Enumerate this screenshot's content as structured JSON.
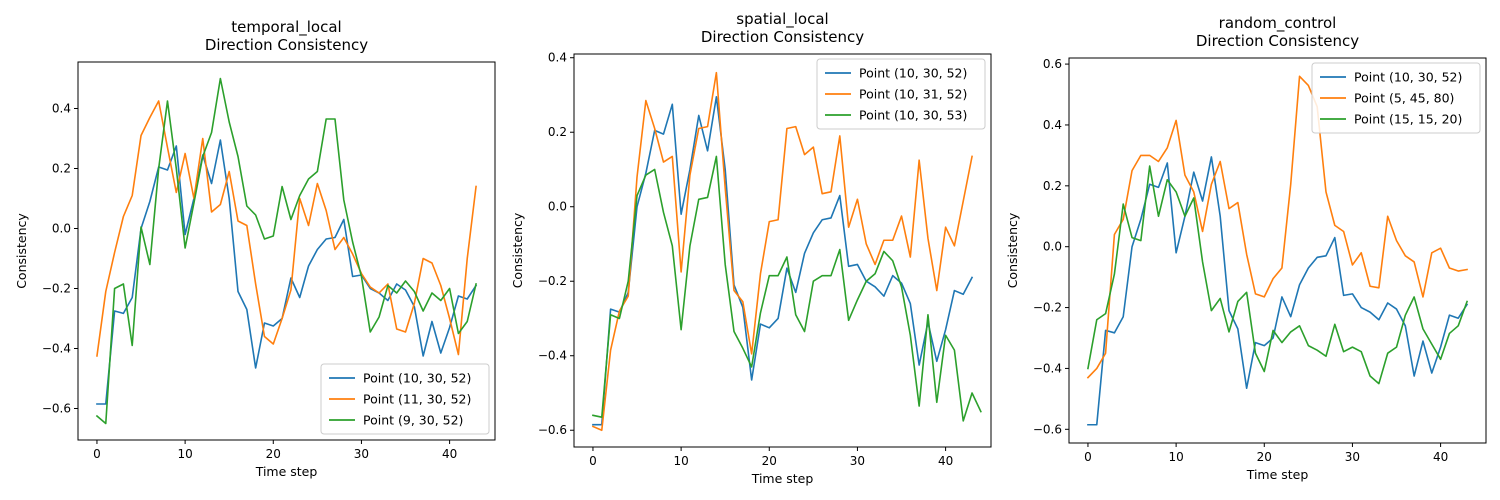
{
  "colors": {
    "c0": "#1f77b4",
    "c1": "#ff7f0e",
    "c2": "#2ca02c"
  },
  "chart_data": [
    {
      "type": "line",
      "title": "temporal_local",
      "subtitle": "Direction Consistency",
      "xlabel": "Time step",
      "ylabel": "Consistency",
      "xlim": [
        -2.15,
        45.15
      ],
      "ylim": [
        -0.705,
        0.555
      ],
      "xticks": [
        0,
        10,
        20,
        30,
        40
      ],
      "yticks": [
        -0.6,
        -0.4,
        -0.2,
        0.0,
        0.2,
        0.4
      ],
      "ytick_labels": [
        "−0.6",
        "−0.4",
        "−0.2",
        "0.0",
        "0.2",
        "0.4"
      ],
      "legend_position": "lower-right",
      "grid": false,
      "series": [
        {
          "name": "Point (10, 30, 52)",
          "values": [
            -0.585,
            -0.585,
            -0.275,
            -0.283,
            -0.23,
            0.0,
            0.09,
            0.205,
            0.195,
            0.275,
            -0.02,
            0.1,
            0.245,
            0.15,
            0.295,
            0.1,
            -0.21,
            -0.27,
            -0.465,
            -0.315,
            -0.325,
            -0.3,
            -0.165,
            -0.23,
            -0.125,
            -0.07,
            -0.035,
            -0.03,
            0.03,
            -0.16,
            -0.155,
            -0.2,
            -0.215,
            -0.24,
            -0.185,
            -0.205,
            -0.26,
            -0.425,
            -0.31,
            -0.415,
            -0.33,
            -0.225,
            -0.235,
            -0.19
          ]
        },
        {
          "name": "Point (11, 30, 52)",
          "values": [
            -0.425,
            -0.21,
            -0.08,
            0.04,
            0.11,
            0.31,
            0.37,
            0.425,
            0.27,
            0.12,
            0.25,
            0.1,
            0.3,
            0.055,
            0.08,
            0.19,
            0.025,
            0.01,
            -0.185,
            -0.36,
            -0.385,
            -0.3,
            -0.205,
            0.1,
            0.01,
            0.15,
            0.06,
            -0.07,
            -0.03,
            -0.085,
            -0.15,
            -0.195,
            -0.215,
            -0.185,
            -0.335,
            -0.345,
            -0.25,
            -0.1,
            -0.115,
            -0.19,
            -0.3,
            -0.42,
            -0.1,
            0.14
          ]
        },
        {
          "name": "Point (9, 30, 52)",
          "values": [
            -0.625,
            -0.65,
            -0.2,
            -0.185,
            -0.39,
            0.005,
            -0.12,
            0.2,
            0.425,
            0.2,
            -0.065,
            0.085,
            0.24,
            0.32,
            0.5,
            0.355,
            0.24,
            0.075,
            0.045,
            -0.035,
            -0.025,
            0.14,
            0.03,
            0.11,
            0.165,
            0.19,
            0.365,
            0.365,
            0.095,
            -0.045,
            -0.16,
            -0.345,
            -0.295,
            -0.19,
            -0.215,
            -0.175,
            -0.21,
            -0.275,
            -0.215,
            -0.24,
            -0.2,
            -0.35,
            -0.31,
            -0.185
          ]
        }
      ]
    },
    {
      "type": "line",
      "title": "spatial_local",
      "subtitle": "Direction Consistency",
      "xlabel": "Time step",
      "ylabel": "Consistency",
      "xlim": [
        -2.15,
        45.15
      ],
      "ylim": [
        -0.645,
        0.41
      ],
      "xticks": [
        0,
        10,
        20,
        30,
        40
      ],
      "yticks": [
        -0.6,
        -0.4,
        -0.2,
        0.0,
        0.2,
        0.4
      ],
      "ytick_labels": [
        "−0.6",
        "−0.4",
        "−0.2",
        "0.0",
        "0.2",
        "0.4"
      ],
      "legend_position": "upper-right",
      "grid": false,
      "series": [
        {
          "name": "Point (10, 30, 52)",
          "values": [
            -0.585,
            -0.585,
            -0.275,
            -0.283,
            -0.23,
            0.0,
            0.09,
            0.205,
            0.195,
            0.275,
            -0.02,
            0.1,
            0.245,
            0.15,
            0.295,
            0.1,
            -0.21,
            -0.27,
            -0.465,
            -0.315,
            -0.325,
            -0.3,
            -0.165,
            -0.23,
            -0.125,
            -0.07,
            -0.035,
            -0.03,
            0.03,
            -0.16,
            -0.155,
            -0.2,
            -0.215,
            -0.24,
            -0.185,
            -0.205,
            -0.26,
            -0.425,
            -0.31,
            -0.415,
            -0.33,
            -0.225,
            -0.235,
            -0.19
          ]
        },
        {
          "name": "Point (10, 31, 52)",
          "values": [
            -0.59,
            -0.6,
            -0.385,
            -0.28,
            -0.24,
            0.08,
            0.285,
            0.21,
            0.12,
            0.135,
            -0.175,
            0.085,
            0.21,
            0.215,
            0.36,
            0.05,
            -0.225,
            -0.255,
            -0.395,
            -0.18,
            -0.04,
            -0.035,
            0.21,
            0.215,
            0.14,
            0.16,
            0.035,
            0.04,
            0.19,
            -0.055,
            0.02,
            -0.1,
            -0.155,
            -0.09,
            -0.09,
            -0.025,
            -0.135,
            0.125,
            -0.085,
            -0.225,
            -0.055,
            -0.105,
            0.015,
            0.135
          ]
        },
        {
          "name": "Point (10, 30, 53)",
          "values": [
            -0.56,
            -0.565,
            -0.29,
            -0.3,
            -0.2,
            0.03,
            0.085,
            0.1,
            -0.015,
            -0.105,
            -0.33,
            -0.105,
            0.02,
            0.025,
            0.135,
            -0.155,
            -0.335,
            -0.38,
            -0.43,
            -0.285,
            -0.185,
            -0.185,
            -0.135,
            -0.29,
            -0.335,
            -0.2,
            -0.185,
            -0.185,
            -0.115,
            -0.305,
            -0.25,
            -0.2,
            -0.18,
            -0.12,
            -0.145,
            -0.215,
            -0.345,
            -0.535,
            -0.29,
            -0.525,
            -0.345,
            -0.385,
            -0.575,
            -0.5,
            -0.55
          ]
        }
      ]
    },
    {
      "type": "line",
      "title": "random_control",
      "subtitle": "Direction Consistency",
      "xlabel": "Time step",
      "ylabel": "Consistency",
      "xlim": [
        -2.15,
        45.15
      ],
      "ylim": [
        -0.645,
        0.62
      ],
      "xticks": [
        0,
        10,
        20,
        30,
        40
      ],
      "yticks": [
        -0.6,
        -0.4,
        -0.2,
        0.0,
        0.2,
        0.4,
        0.6
      ],
      "ytick_labels": [
        "−0.6",
        "−0.4",
        "−0.2",
        "0.0",
        "0.2",
        "0.4",
        "0.6"
      ],
      "legend_position": "upper-right",
      "grid": false,
      "series": [
        {
          "name": "Point (10, 30, 52)",
          "values": [
            -0.585,
            -0.585,
            -0.275,
            -0.283,
            -0.23,
            0.0,
            0.09,
            0.205,
            0.195,
            0.275,
            -0.02,
            0.1,
            0.245,
            0.15,
            0.295,
            0.1,
            -0.21,
            -0.27,
            -0.465,
            -0.315,
            -0.325,
            -0.3,
            -0.165,
            -0.23,
            -0.125,
            -0.07,
            -0.035,
            -0.03,
            0.03,
            -0.16,
            -0.155,
            -0.2,
            -0.215,
            -0.24,
            -0.185,
            -0.205,
            -0.26,
            -0.425,
            -0.31,
            -0.415,
            -0.33,
            -0.225,
            -0.235,
            -0.19
          ]
        },
        {
          "name": "Point (5, 45, 80)",
          "values": [
            -0.43,
            -0.4,
            -0.35,
            0.04,
            0.09,
            0.25,
            0.3,
            0.3,
            0.28,
            0.325,
            0.415,
            0.235,
            0.18,
            0.05,
            0.205,
            0.28,
            0.125,
            0.145,
            -0.025,
            -0.155,
            -0.165,
            -0.105,
            -0.07,
            0.205,
            0.56,
            0.53,
            0.46,
            0.18,
            0.07,
            0.05,
            -0.06,
            -0.02,
            -0.13,
            -0.135,
            0.1,
            0.02,
            -0.03,
            -0.05,
            -0.165,
            -0.02,
            -0.005,
            -0.07,
            -0.08,
            -0.075
          ]
        },
        {
          "name": "Point (15, 15, 20)",
          "values": [
            -0.4,
            -0.24,
            -0.22,
            -0.09,
            0.14,
            0.03,
            0.02,
            0.265,
            0.1,
            0.22,
            0.18,
            0.1,
            0.16,
            -0.05,
            -0.21,
            -0.17,
            -0.28,
            -0.18,
            -0.15,
            -0.35,
            -0.41,
            -0.275,
            -0.315,
            -0.28,
            -0.26,
            -0.325,
            -0.34,
            -0.36,
            -0.255,
            -0.345,
            -0.33,
            -0.345,
            -0.425,
            -0.45,
            -0.35,
            -0.33,
            -0.225,
            -0.165,
            -0.27,
            -0.32,
            -0.37,
            -0.285,
            -0.26,
            -0.18
          ]
        }
      ]
    }
  ]
}
